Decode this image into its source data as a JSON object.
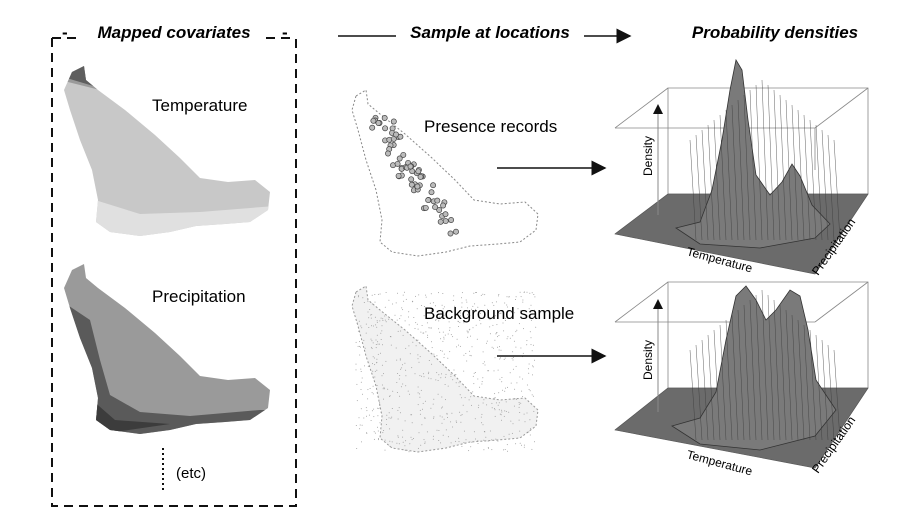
{
  "headers": {
    "mapped_covariates": "Mapped covariates",
    "sample_at_locations": "Sample at locations",
    "probability_densities": "Probability densities"
  },
  "covariates": {
    "temperature": "Temperature",
    "precipitation": "Precipitation",
    "etc": "(etc)"
  },
  "samples": {
    "presence": "Presence records",
    "background": "Background sample"
  },
  "plots": [
    {
      "z_label": "Density",
      "x_label": "Temperature",
      "y_label": "Precipitation"
    },
    {
      "z_label": "Density",
      "x_label": "Temperature",
      "y_label": "Precipitation"
    }
  ],
  "colors": {
    "map_light": "#c8c8c8",
    "map_mid": "#9a9a9a",
    "map_dark": "#5a5a5a",
    "surface": "#6b6b6b",
    "ink": "#111111"
  }
}
